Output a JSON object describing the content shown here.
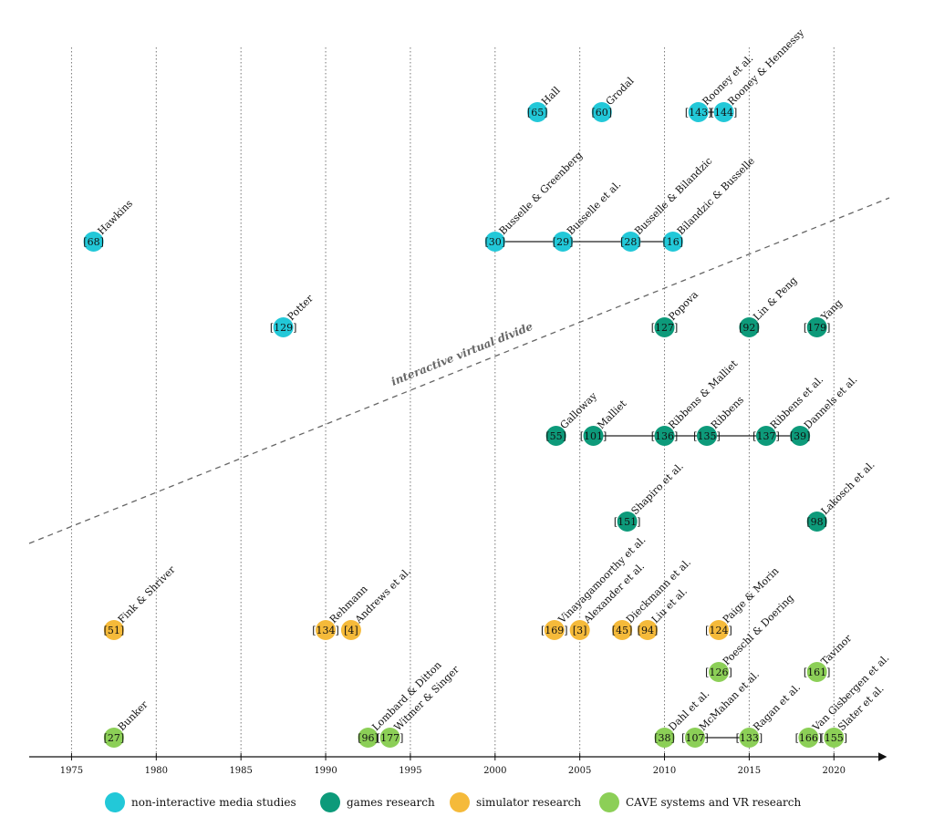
{
  "figure": {
    "divide_label": "interactive virtual divide",
    "x_domain": [
      1972.5,
      2023
    ],
    "tick_years": [
      1975,
      1980,
      1985,
      1990,
      1995,
      2000,
      2005,
      2010,
      2015,
      2020
    ]
  },
  "colors": {
    "non_interactive": "#22c8d8",
    "games": "#0d9a7a",
    "simulator": "#f5ba3a",
    "vr": "#8ccf57"
  },
  "legend": [
    {
      "key": "non_interactive",
      "label": "non-interactive media studies"
    },
    {
      "key": "games",
      "label": "games research"
    },
    {
      "key": "simulator",
      "label": "simulator research"
    },
    {
      "key": "vr",
      "label": "CAVE systems and VR research"
    }
  ],
  "rows": [
    {
      "group": "non_interactive",
      "items": [
        {
          "ref": "65",
          "label": "Hall",
          "year": 2002.5
        },
        {
          "ref": "60",
          "label": "Grodal",
          "year": 2006.3
        },
        {
          "ref": "143",
          "label": "Rooney et al.",
          "year": 2012.0
        },
        {
          "ref": "144",
          "label": "Rooney & Hennessy",
          "year": 2013.5
        }
      ],
      "links": [
        [
          2,
          3
        ]
      ]
    },
    {
      "group": "non_interactive",
      "items": [
        {
          "ref": "68",
          "label": "Hawkins",
          "year": 1976.3
        },
        {
          "ref": "30",
          "label": "Busselle & Greenberg",
          "year": 2000.0
        },
        {
          "ref": "29",
          "label": "Busselle et al.",
          "year": 2004.0
        },
        {
          "ref": "28",
          "label": "Busselle & Bilandzic",
          "year": 2008.0
        },
        {
          "ref": "16",
          "label": "Bilandzic & Busselle",
          "year": 2010.5
        }
      ],
      "links": [
        [
          1,
          2
        ],
        [
          2,
          3
        ],
        [
          3,
          4
        ]
      ]
    },
    {
      "group": "mixed",
      "items": [
        {
          "ref": "129",
          "label": "Potter",
          "year": 1987.5,
          "group": "non_interactive"
        },
        {
          "ref": "127",
          "label": "Popova",
          "year": 2010.0,
          "group": "games"
        },
        {
          "ref": "92",
          "label": "Lin & Peng",
          "year": 2015.0,
          "group": "games"
        },
        {
          "ref": "179",
          "label": "Yang",
          "year": 2019.0,
          "group": "games"
        }
      ],
      "links": []
    },
    {
      "group": "games",
      "items": [
        {
          "ref": "55",
          "label": "Galloway",
          "year": 2003.6
        },
        {
          "ref": "101",
          "label": "Malliet",
          "year": 2005.8
        },
        {
          "ref": "136",
          "label": "Ribbens & Malliet",
          "year": 2010.0
        },
        {
          "ref": "135",
          "label": "Ribbens",
          "year": 2012.5
        },
        {
          "ref": "137",
          "label": "Ribbens et al.",
          "year": 2016.0
        },
        {
          "ref": "39",
          "label": "Dannels et al.",
          "year": 2018.0
        }
      ],
      "links": [
        [
          1,
          2
        ],
        [
          2,
          3
        ],
        [
          3,
          4
        ],
        [
          4,
          5
        ]
      ]
    },
    {
      "group": "games",
      "items": [
        {
          "ref": "151",
          "label": "Shapiro et al.",
          "year": 2007.8
        },
        {
          "ref": "98",
          "label": "Lakosch et al.",
          "year": 2019.0
        }
      ],
      "links": []
    },
    {
      "group": "simulator",
      "items": [
        {
          "ref": "51",
          "label": "Fink & Shriver",
          "year": 1977.5
        },
        {
          "ref": "134",
          "label": "Rehmann",
          "year": 1990.0
        },
        {
          "ref": "4",
          "label": "Andrews et al.",
          "year": 1991.5
        },
        {
          "ref": "169",
          "label": "Vinayagamoorthy et al.",
          "year": 2003.5
        },
        {
          "ref": "3",
          "label": "Alexander et al.",
          "year": 2005.0
        },
        {
          "ref": "45",
          "label": "Dieckmann et al.",
          "year": 2007.5
        },
        {
          "ref": "94",
          "label": "Liu et al.",
          "year": 2009.0
        },
        {
          "ref": "124",
          "label": "Paige & Morin",
          "year": 2013.2
        }
      ],
      "links": []
    },
    {
      "group": "vr",
      "items": [
        {
          "ref": "126",
          "label": "Poeschl & Doering",
          "year": 2013.2
        },
        {
          "ref": "161",
          "label": "Tavinor",
          "year": 2019.0
        }
      ],
      "links": []
    },
    {
      "group": "vr",
      "items": [
        {
          "ref": "27",
          "label": "Bunker",
          "year": 1977.5
        },
        {
          "ref": "96",
          "label": "Lombard & Ditton",
          "year": 1992.5
        },
        {
          "ref": "177",
          "label": "Witmer & Singer",
          "year": 1993.8
        },
        {
          "ref": "38",
          "label": "Dahl et al.",
          "year": 2010.0
        },
        {
          "ref": "107",
          "label": "McMahan et al.",
          "year": 2011.8
        },
        {
          "ref": "133",
          "label": "Ragan et al.",
          "year": 2015.0
        },
        {
          "ref": "166",
          "label": "Van Gisbergen et al.",
          "year": 2018.5
        },
        {
          "ref": "155",
          "label": "Slater et al.",
          "year": 2020.0
        }
      ],
      "links": [
        [
          4,
          5
        ]
      ]
    }
  ]
}
